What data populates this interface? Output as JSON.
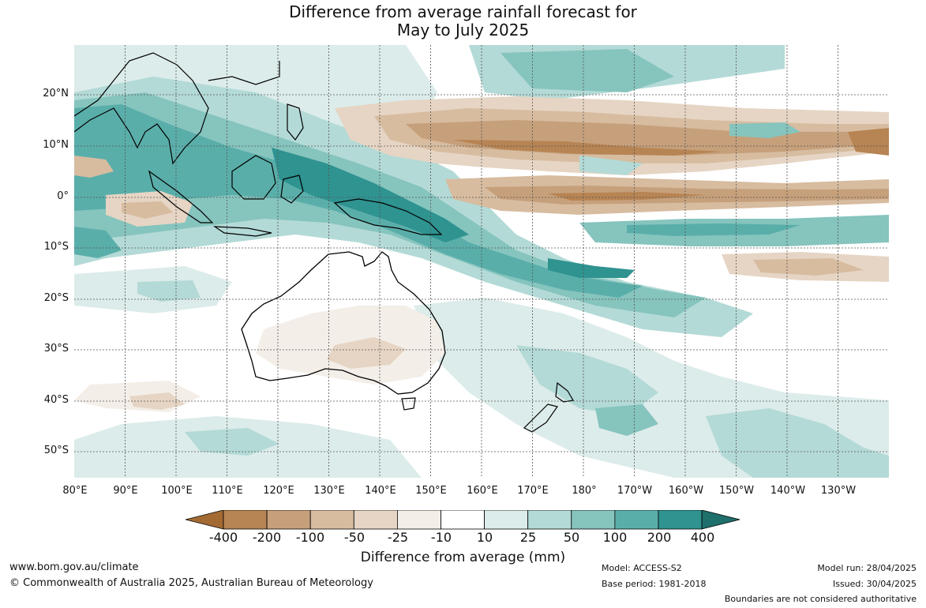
{
  "title": {
    "line1": "Difference from average rainfall forecast for",
    "line2": "May to July 2025"
  },
  "latitudes": [
    "20°N",
    "10°N",
    "0°",
    "10°S",
    "20°S",
    "30°S",
    "40°S",
    "50°S"
  ],
  "longitudes": [
    "80°E",
    "90°E",
    "100°E",
    "110°E",
    "120°E",
    "130°E",
    "140°E",
    "150°E",
    "160°E",
    "170°E",
    "180°",
    "170°W",
    "160°W",
    "150°W",
    "140°W",
    "130°W"
  ],
  "colorbar": {
    "labels": [
      "-400",
      "-200",
      "-100",
      "-50",
      "-25",
      "-10",
      "10",
      "25",
      "50",
      "100",
      "200",
      "400"
    ],
    "colors": [
      "#a36a34",
      "#b78453",
      "#c6a07b",
      "#d7bca0",
      "#e6d5c4",
      "#f4eee8",
      "#ffffff",
      "#dcecea",
      "#b3dad6",
      "#86c4be",
      "#5aaeaa",
      "#2f9390",
      "#1f6f6c"
    ],
    "title": "Difference from average (mm)"
  },
  "footer": {
    "website": "www.bom.gov.au/climate",
    "copyright": "© Commonwealth of Australia 2025, Australian Bureau of Meteorology",
    "model": "Model: ACCESS-S2",
    "base_period": "Base period: 1981-2018",
    "model_run": "Model run: 28/04/2025",
    "issued": "Issued: 30/04/2025",
    "disclaimer": "Boundaries are not considered authoritative"
  }
}
